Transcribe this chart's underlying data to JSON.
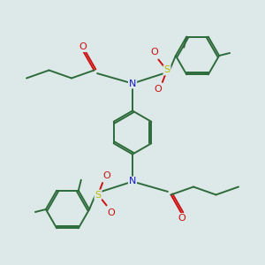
{
  "bg_color": "#dde8e8",
  "bond_color": "#2d6b3a",
  "n_color": "#1515cc",
  "o_color": "#cc1111",
  "s_color": "#bbbb00",
  "line_width": 1.4,
  "figsize": [
    3.0,
    3.0
  ],
  "dpi": 100,
  "xlim": [
    0,
    10
  ],
  "ylim": [
    0,
    10
  ]
}
